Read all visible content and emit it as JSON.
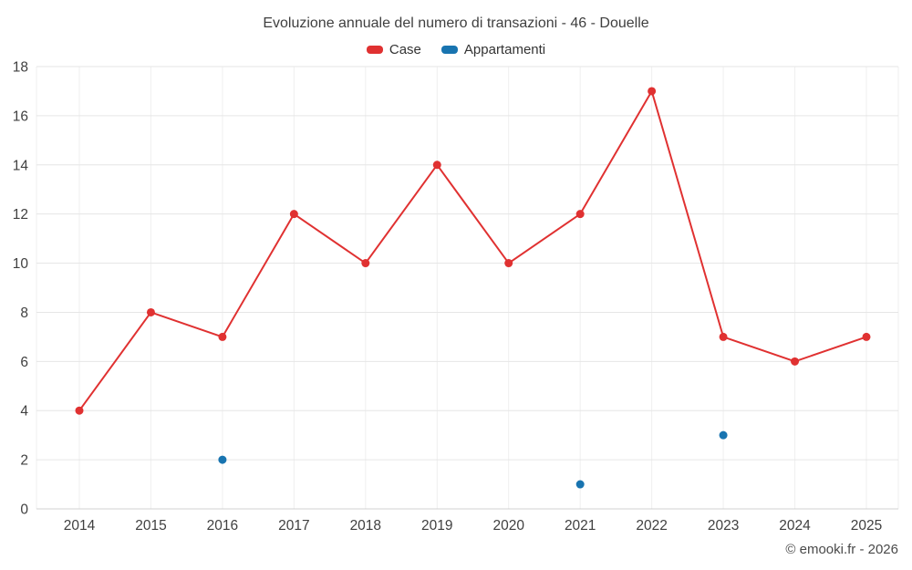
{
  "chart": {
    "title": "Evoluzione annuale del numero di transazioni - 46 - Douelle",
    "footer": "© emooki.fr - 2026"
  },
  "chart_data": {
    "type": "line",
    "title": "Evoluzione annuale del numero di transazioni - 46 - Douelle",
    "categories": [
      "2014",
      "2015",
      "2016",
      "2017",
      "2018",
      "2019",
      "2020",
      "2021",
      "2022",
      "2023",
      "2024",
      "2025"
    ],
    "series": [
      {
        "name": "Case",
        "type": "line",
        "color": "#e03131",
        "values": [
          4,
          8,
          7,
          12,
          10,
          14,
          10,
          12,
          17,
          7,
          6,
          7
        ]
      },
      {
        "name": "Appartamenti",
        "type": "scatter",
        "color": "#1874b0",
        "values": [
          null,
          null,
          2,
          null,
          null,
          null,
          null,
          1,
          null,
          3,
          null,
          null
        ]
      }
    ],
    "xlabel": "",
    "ylabel": "",
    "ylim": [
      0,
      18
    ],
    "ytick_step": 2,
    "grid": true,
    "legend_position": "top",
    "grid_color": "#e6e6e6",
    "vgrid_color": "#efefef",
    "baseline_color": "#d0d0d0"
  }
}
